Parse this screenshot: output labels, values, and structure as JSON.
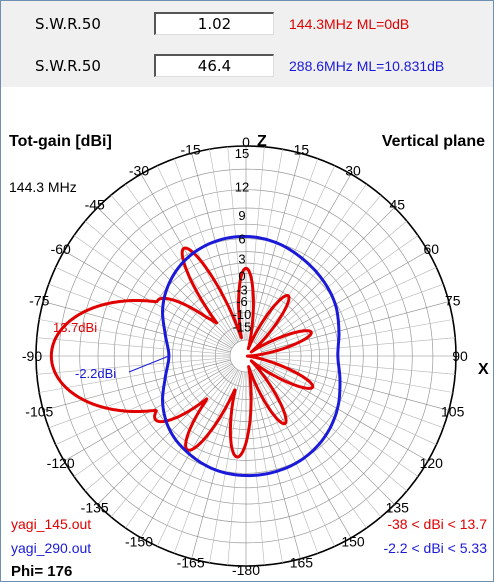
{
  "swr_rows": [
    {
      "label": "S.W.R.50",
      "value": "1.02",
      "note": "144.3MHz ML=0dB",
      "color": "#e00000"
    },
    {
      "label": "S.W.R.50",
      "value": "46.4",
      "note": "288.6MHz ML=10.831dB",
      "color": "#1a1ad8"
    }
  ],
  "chart_data": {
    "type": "polar",
    "title_left": "Tot-gain [dBi]",
    "title_right": "Vertical plane",
    "frequency_label": "144.3 MHz",
    "axis_letter_top": "Z",
    "axis_letter_right": "X",
    "angle_ticks": [
      "0",
      "15",
      "30",
      "45",
      "60",
      "75",
      "90",
      "105",
      "120",
      "135",
      "150",
      "165",
      "-180",
      "-165",
      "-150",
      "-135",
      "-120",
      "-105",
      "-90",
      "-75",
      "-60",
      "-45",
      "-30",
      "-15"
    ],
    "radial_ticks": [
      "15",
      "12",
      "9",
      "6",
      "3",
      "0",
      "-3",
      "-6",
      "-10",
      "-15"
    ],
    "grid": true,
    "series": [
      {
        "name": "yagi_145.out",
        "color": "#e00000",
        "peak_label": "13.7dBi",
        "range_text": "-38 < dBi < 13.7",
        "lobes": [
          {
            "angle": -90,
            "peak_dbi": 13.7,
            "width_deg": 28
          },
          {
            "angle": -30,
            "peak_dbi": 6.0,
            "width_deg": 8
          },
          {
            "angle": 0,
            "peak_dbi": 0.0,
            "width_deg": 8
          },
          {
            "angle": 35,
            "peak_dbi": -3.0,
            "width_deg": 8
          },
          {
            "angle": 70,
            "peak_dbi": -4.0,
            "width_deg": 8
          },
          {
            "angle": 115,
            "peak_dbi": -3.0,
            "width_deg": 8
          },
          {
            "angle": 150,
            "peak_dbi": -2.0,
            "width_deg": 8
          },
          {
            "angle": -175,
            "peak_dbi": 2.5,
            "width_deg": 9
          },
          {
            "angle": -148,
            "peak_dbi": 4.0,
            "width_deg": 9
          },
          {
            "angle": -125,
            "peak_dbi": 4.0,
            "width_deg": 11
          },
          {
            "angle": -58,
            "peak_dbi": 3.0,
            "width_deg": 11
          }
        ]
      },
      {
        "name": "yagi_290.out",
        "color": "#1a1ad8",
        "peak_label": "-2.2dBi",
        "range_text": "-2.2 < dBi < 5.33",
        "points": [
          {
            "angle": 0,
            "dbi": 5.33
          },
          {
            "angle": 15,
            "dbi": 5.0
          },
          {
            "angle": 30,
            "dbi": 4.3
          },
          {
            "angle": 45,
            "dbi": 3.6
          },
          {
            "angle": 60,
            "dbi": 2.8
          },
          {
            "angle": 75,
            "dbi": 1.6
          },
          {
            "angle": 90,
            "dbi": 0.8
          },
          {
            "angle": 105,
            "dbi": 1.8
          },
          {
            "angle": 120,
            "dbi": 3.2
          },
          {
            "angle": 135,
            "dbi": 4.3
          },
          {
            "angle": 150,
            "dbi": 5.0
          },
          {
            "angle": 165,
            "dbi": 5.3
          },
          {
            "angle": 180,
            "dbi": 5.33
          },
          {
            "angle": -165,
            "dbi": 5.1
          },
          {
            "angle": -150,
            "dbi": 4.4
          },
          {
            "angle": -135,
            "dbi": 3.4
          },
          {
            "angle": -120,
            "dbi": 1.6
          },
          {
            "angle": -105,
            "dbi": -0.8
          },
          {
            "angle": -90,
            "dbi": -2.2
          },
          {
            "angle": -75,
            "dbi": -0.8
          },
          {
            "angle": -60,
            "dbi": 1.6
          },
          {
            "angle": -45,
            "dbi": 3.4
          },
          {
            "angle": -30,
            "dbi": 4.6
          },
          {
            "angle": -15,
            "dbi": 5.2
          }
        ]
      }
    ],
    "phi_label": "Phi= 176"
  }
}
